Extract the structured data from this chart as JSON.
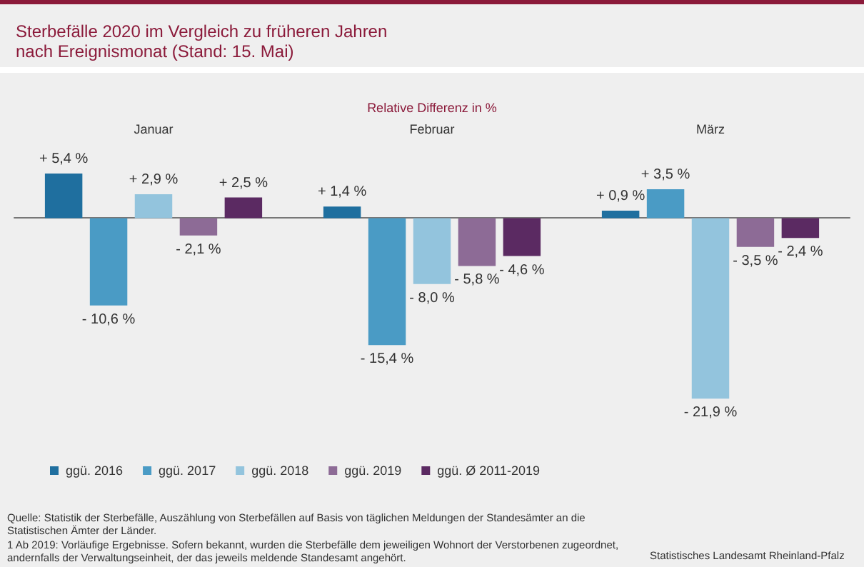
{
  "chart_data": {
    "type": "bar",
    "title": "Sterbefälle 2020 im Vergleich zu früheren Jahren\nnach Ereignismonat (Stand: 15. Mai)",
    "subtitle": "Relative Differenz in %",
    "categories": [
      "Januar",
      "Februar",
      "März"
    ],
    "series": [
      {
        "name": "ggü. 2016",
        "color": "#1f6f9f",
        "values": [
          5.4,
          1.4,
          0.9
        ],
        "value_labels": [
          "+ 5,4 %",
          "+ 1,4 %",
          "+ 0,9 %"
        ]
      },
      {
        "name": "ggü. 2017",
        "color": "#4a9bc5",
        "values": [
          -10.6,
          -15.4,
          3.5
        ],
        "value_labels": [
          "- 10,6 %",
          "- 15,4 %",
          "+ 3,5 %"
        ]
      },
      {
        "name": "ggü. 2018",
        "color": "#93c4dd",
        "values": [
          2.9,
          -8.0,
          -21.9
        ],
        "value_labels": [
          "+ 2,9 %",
          "- 8,0 %",
          "- 21,9 %"
        ]
      },
      {
        "name": "ggü. 2019",
        "color": "#8d6b96",
        "values": [
          -2.1,
          -5.8,
          -3.5
        ],
        "value_labels": [
          "- 2,1 %",
          "- 5,8 %",
          "- 3,5 %"
        ]
      },
      {
        "name": "ggü. Ø 2011-2019",
        "color": "#5b2a62",
        "values": [
          2.5,
          -4.6,
          -2.4
        ],
        "value_labels": [
          "+ 2,5 %",
          "- 4,6 %",
          "- 2,4 %"
        ]
      }
    ],
    "legend": "bottom left",
    "grid": false,
    "annotations": [
      "Quelle: Statistik der Sterbefälle, Auszählung von Sterbefällen auf Basis von täglichen Meldungen der Standesämter an die Statistischen Ämter der Länder.",
      "1 Ab 2019: Vorläufige Ergebnisse. Sofern bekannt, wurden die Sterbefälle dem jeweiligen Wohnort der Verstorbenen zugeordnet, andernfalls der Verwaltungseinheit, der das jeweils meldende Standesamt angehört.",
      "Statistisches Landesamt Rheinland-Pfalz"
    ]
  }
}
